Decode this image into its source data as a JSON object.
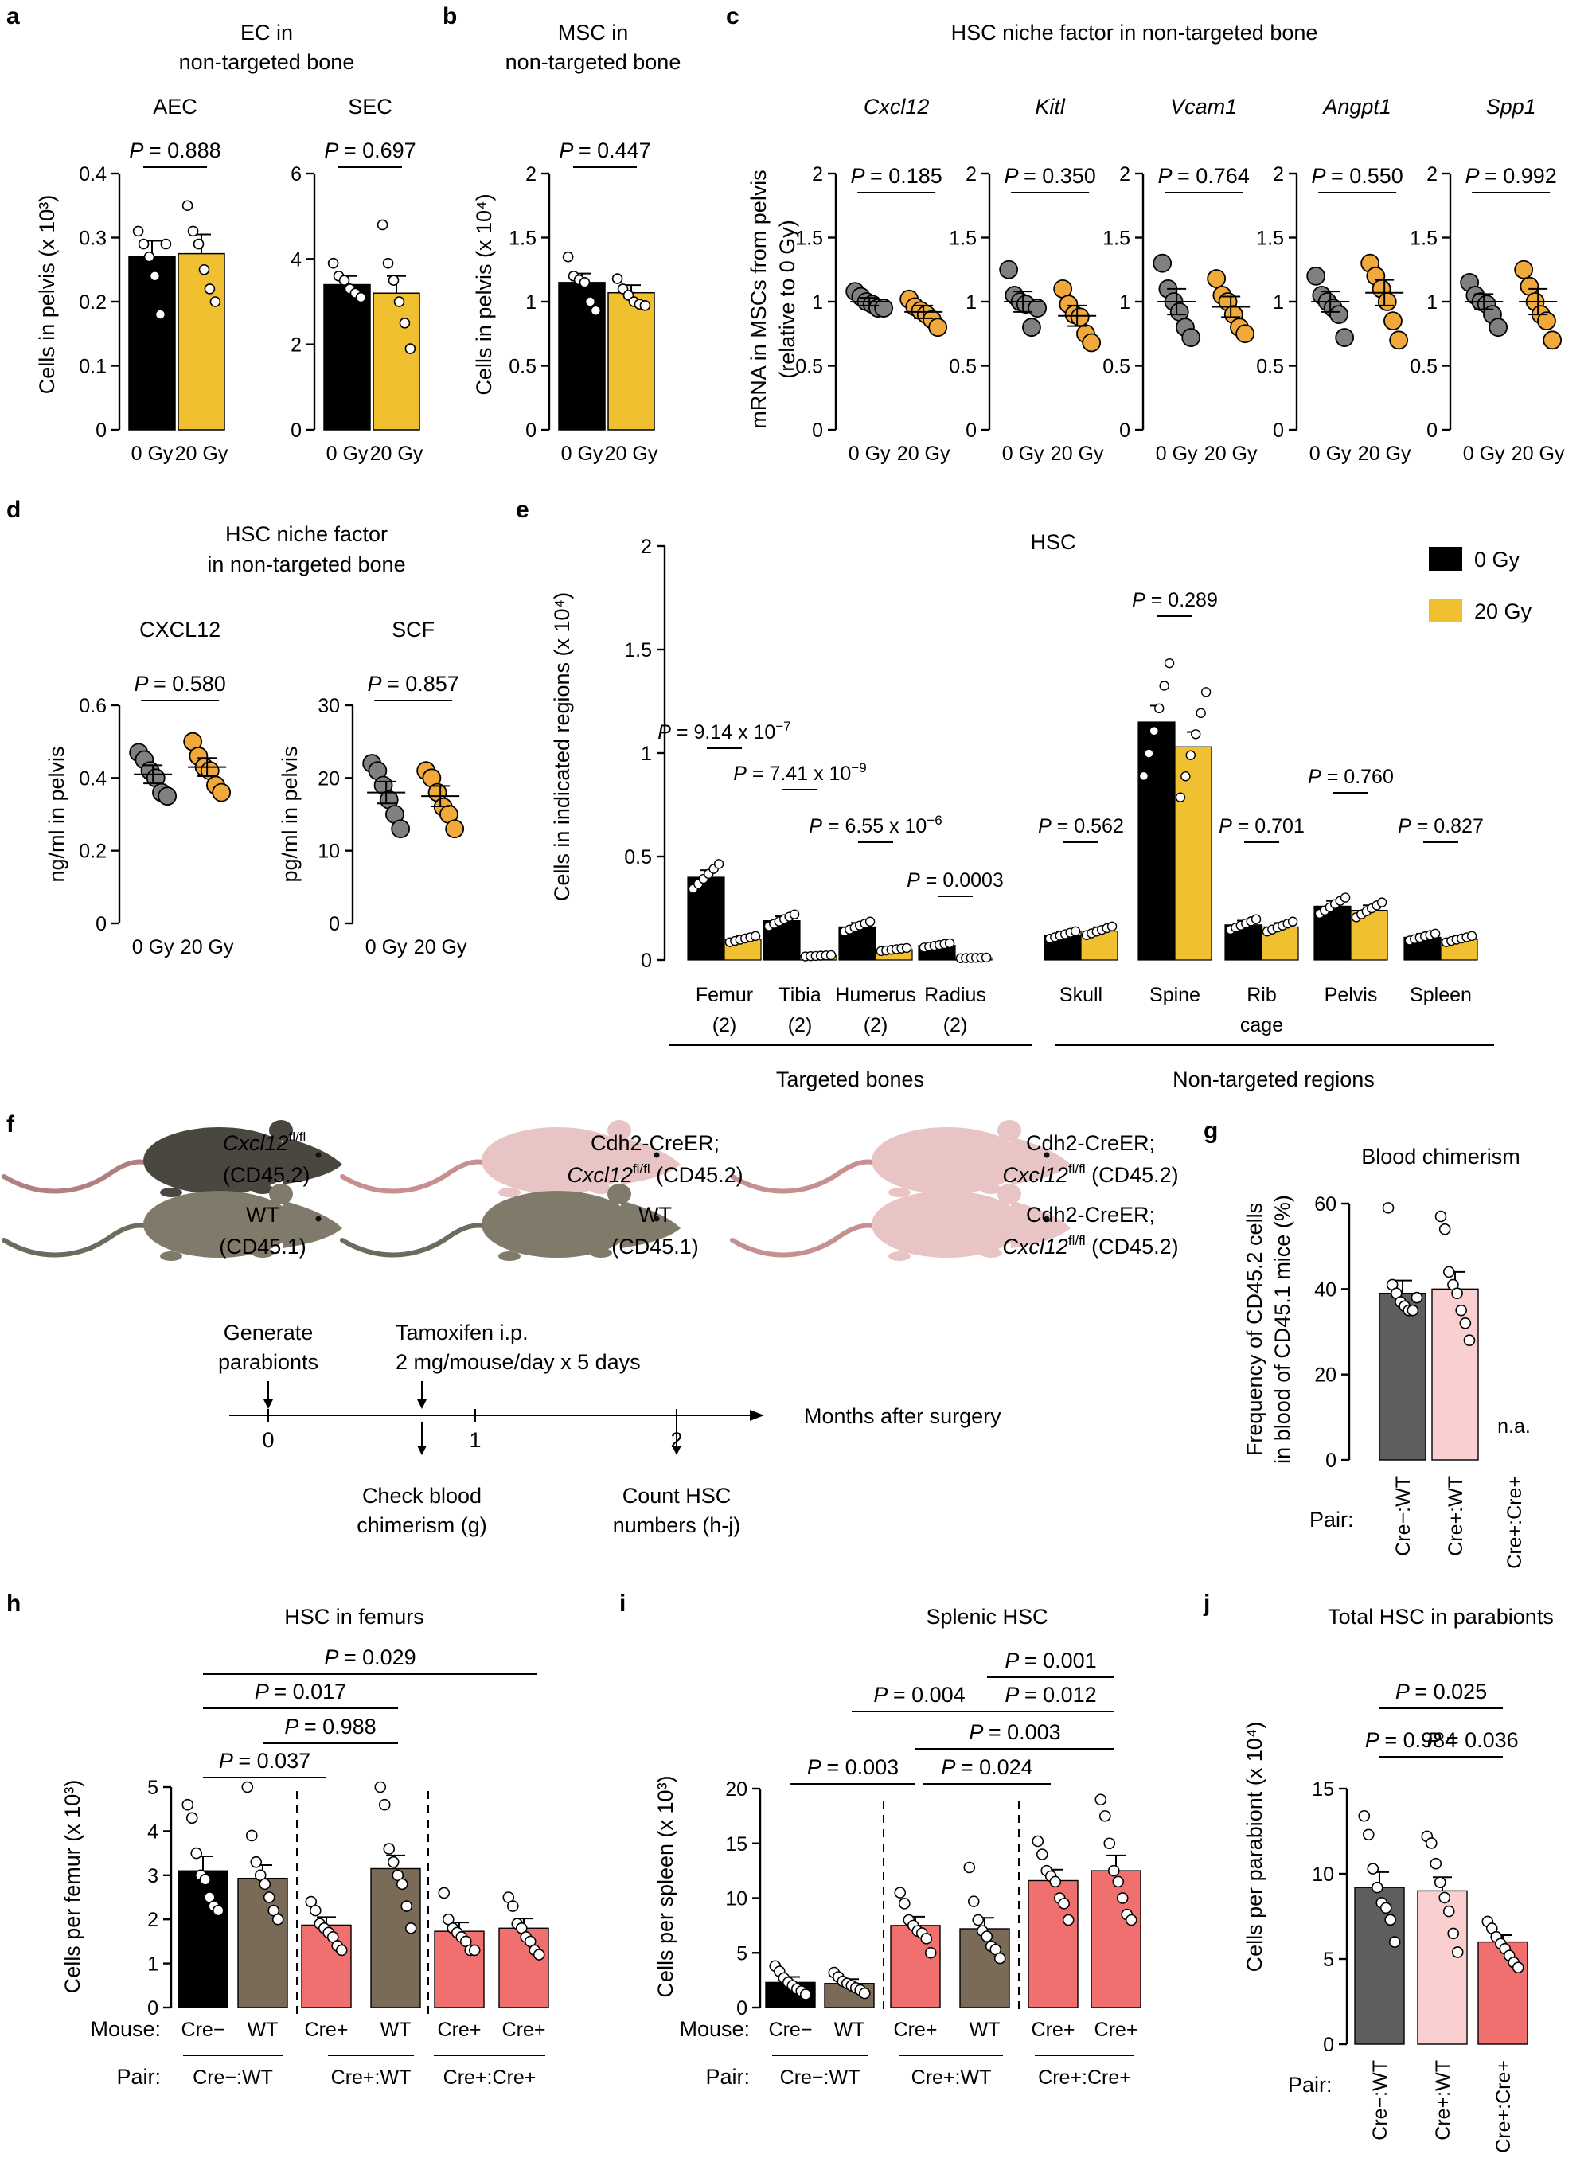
{
  "colors": {
    "ctrl_bar": "#000000",
    "irr_bar": "#f0c030",
    "ctrl_dot": "#808080",
    "irr_dot": "#f2a93b",
    "wt_bar": "#7a6b58",
    "crepos_bar": "#f07070",
    "creneg_bar": "#5e5e5e",
    "creposwt_bar": "#f9cfd0"
  },
  "panel_labels": {
    "a": "a",
    "b": "b",
    "c": "c",
    "d": "d",
    "e": "e",
    "f": "f",
    "g": "g",
    "h": "h",
    "i": "i",
    "j": "j"
  },
  "panel_a": {
    "title_line1": "EC in",
    "title_line2": "non-targeted bone",
    "ylabel": "Cells in pelvis (x 10³)",
    "groups": [
      "0 Gy",
      "20 Gy"
    ],
    "chart_data": [
      {
        "type": "bar",
        "title": "AEC",
        "p": "= 0.888",
        "ylim": [
          0,
          0.4
        ],
        "yticks": [
          "0",
          "0.1",
          "0.2",
          "0.3",
          "0.4"
        ],
        "categories": [
          "0 Gy",
          "20 Gy"
        ],
        "values": [
          0.27,
          0.275
        ],
        "sem": [
          0.025,
          0.03
        ],
        "points": [
          [
            0.31,
            0.29,
            0.27,
            0.24,
            0.18,
            0.29
          ],
          [
            0.35,
            0.31,
            0.29,
            0.25,
            0.22,
            0.2
          ]
        ]
      },
      {
        "type": "bar",
        "title": "SEC",
        "p": "= 0.697",
        "ylim": [
          0,
          6
        ],
        "yticks": [
          "0",
          "2",
          "4",
          "6"
        ],
        "categories": [
          "0 Gy",
          "20 Gy"
        ],
        "values": [
          3.4,
          3.2
        ],
        "sem": [
          0.2,
          0.4
        ],
        "points": [
          [
            3.9,
            3.6,
            3.5,
            3.3,
            3.2,
            3.1
          ],
          [
            4.8,
            3.9,
            3.5,
            3.0,
            2.5,
            1.9
          ]
        ]
      }
    ]
  },
  "panel_b": {
    "title_line1": "MSC in",
    "title_line2": "non-targeted bone",
    "ylabel": "Cells in pelvis (x 10⁴)",
    "chart_data": {
      "type": "bar",
      "p": "= 0.447",
      "ylim": [
        0,
        2
      ],
      "yticks": [
        "0",
        "0.5",
        "1",
        "1.5",
        "2"
      ],
      "categories": [
        "0 Gy",
        "20 Gy"
      ],
      "values": [
        1.15,
        1.07
      ],
      "sem": [
        0.07,
        0.06
      ],
      "points": [
        [
          1.35,
          1.2,
          1.17,
          1.15,
          1.0,
          0.93
        ],
        [
          1.18,
          1.1,
          1.05,
          1.0,
          0.98,
          0.97
        ]
      ]
    }
  },
  "panel_c": {
    "title": "HSC niche factor in non-targeted bone",
    "ylabel_line1": "mRNA in MSCs from pelvis",
    "ylabel_line2": "(relative to 0 Gy)",
    "chart_data": [
      {
        "type": "scatter",
        "gene": "Cxcl12",
        "p": "= 0.185",
        "ylim": [
          0,
          2
        ],
        "yticks": [
          "0",
          "0.5",
          "1",
          "1.5",
          "2"
        ],
        "categories": [
          "0 Gy",
          "20 Gy"
        ],
        "means": [
          1.0,
          0.92
        ],
        "sem": [
          0.03,
          0.05
        ],
        "points": [
          [
            1.08,
            1.04,
            1.0,
            0.98,
            0.95,
            0.95
          ],
          [
            1.02,
            0.96,
            0.93,
            0.9,
            0.86,
            0.8
          ]
        ]
      },
      {
        "type": "scatter",
        "gene": "Kitl",
        "p": "= 0.350",
        "ylim": [
          0,
          2
        ],
        "yticks": [
          "0",
          "0.5",
          "1",
          "1.5",
          "2"
        ],
        "categories": [
          "0 Gy",
          "20 Gy"
        ],
        "means": [
          1.0,
          0.89
        ],
        "sem": [
          0.08,
          0.08
        ],
        "points": [
          [
            1.25,
            1.05,
            1.0,
            0.98,
            0.8,
            0.95
          ],
          [
            1.1,
            0.98,
            0.9,
            0.88,
            0.75,
            0.68
          ]
        ]
      },
      {
        "type": "scatter",
        "gene": "Vcam1",
        "p": "= 0.764",
        "ylim": [
          0,
          2
        ],
        "yticks": [
          "0",
          "0.5",
          "1",
          "1.5",
          "2"
        ],
        "categories": [
          "0 Gy",
          "20 Gy"
        ],
        "means": [
          1.0,
          0.96
        ],
        "sem": [
          0.1,
          0.08
        ],
        "points": [
          [
            1.3,
            1.1,
            1.0,
            0.92,
            0.8,
            0.72
          ],
          [
            1.18,
            1.05,
            1.0,
            0.9,
            0.8,
            0.75
          ]
        ]
      },
      {
        "type": "scatter",
        "gene": "Angpt1",
        "p": "= 0.550",
        "ylim": [
          0,
          2
        ],
        "yticks": [
          "0",
          "0.5",
          "1",
          "1.5",
          "2"
        ],
        "categories": [
          "0 Gy",
          "20 Gy"
        ],
        "means": [
          1.0,
          1.07
        ],
        "sem": [
          0.08,
          0.1
        ],
        "points": [
          [
            1.2,
            1.05,
            1.0,
            0.95,
            0.9,
            0.72
          ],
          [
            1.3,
            1.2,
            1.1,
            1.0,
            0.85,
            0.7
          ]
        ]
      },
      {
        "type": "scatter",
        "gene": "Spp1",
        "p": "= 0.992",
        "ylim": [
          0,
          2
        ],
        "yticks": [
          "0",
          "0.5",
          "1",
          "1.5",
          "2"
        ],
        "categories": [
          "0 Gy",
          "20 Gy"
        ],
        "means": [
          1.0,
          1.0
        ],
        "sem": [
          0.06,
          0.1
        ],
        "points": [
          [
            1.15,
            1.05,
            1.0,
            0.98,
            0.9,
            0.8
          ],
          [
            1.25,
            1.12,
            1.0,
            0.9,
            0.85,
            0.7
          ]
        ]
      }
    ]
  },
  "panel_d": {
    "title_line1": "HSC niche factor",
    "title_line2": "in non-targeted bone",
    "chart_data": [
      {
        "type": "scatter",
        "title": "CXCL12",
        "ylabel": "ng/ml in pelvis",
        "p": "= 0.580",
        "ylim": [
          0,
          0.6
        ],
        "yticks": [
          "0",
          "0.2",
          "0.4",
          "0.6"
        ],
        "categories": [
          "0 Gy",
          "20 Gy"
        ],
        "means": [
          0.41,
          0.43
        ],
        "sem": [
          0.025,
          0.025
        ],
        "points": [
          [
            0.47,
            0.45,
            0.42,
            0.4,
            0.36,
            0.35
          ],
          [
            0.5,
            0.46,
            0.43,
            0.42,
            0.38,
            0.36
          ]
        ]
      },
      {
        "type": "scatter",
        "title": "SCF",
        "ylabel": "pg/ml in pelvis",
        "p": "= 0.857",
        "ylim": [
          0,
          30
        ],
        "yticks": [
          "0",
          "10",
          "20",
          "30"
        ],
        "categories": [
          "0 Gy",
          "20 Gy"
        ],
        "means": [
          18,
          17.5
        ],
        "sem": [
          1.5,
          1.4
        ],
        "points": [
          [
            22,
            21,
            19,
            17,
            15,
            13
          ],
          [
            21,
            20,
            18,
            16,
            15,
            13
          ]
        ]
      }
    ]
  },
  "panel_e": {
    "title": "HSC",
    "ylabel": "Cells in indicated regions (x 10⁴)",
    "legend": [
      "0 Gy",
      "20 Gy"
    ],
    "group_labels": [
      "Targeted bones",
      "Non-targeted regions"
    ],
    "chart_data": {
      "type": "bar",
      "ylim": [
        0,
        2
      ],
      "yticks": [
        "0",
        "0.5",
        "1",
        "1.5",
        "2"
      ],
      "categories": [
        {
          "name": "Femur",
          "sub": "(2)"
        },
        {
          "name": "Tibia",
          "sub": "(2)"
        },
        {
          "name": "Humerus",
          "sub": "(2)"
        },
        {
          "name": "Radius",
          "sub": "(2)"
        },
        {
          "name": "Skull",
          "sub": ""
        },
        {
          "name": "Spine",
          "sub": ""
        },
        {
          "name": "Rib",
          "sub": "cage"
        },
        {
          "name": "Pelvis",
          "sub": ""
        },
        {
          "name": "Spleen",
          "sub": ""
        }
      ],
      "series": [
        {
          "name": "0 Gy",
          "values": [
            0.4,
            0.19,
            0.16,
            0.07,
            0.12,
            1.15,
            0.17,
            0.26,
            0.11
          ]
        },
        {
          "name": "20 Gy",
          "values": [
            0.1,
            0.02,
            0.05,
            0.01,
            0.14,
            1.03,
            0.16,
            0.24,
            0.1
          ]
        }
      ],
      "p_values": [
        {
          "text": "P = 9.14 x 10",
          "sup": "−7"
        },
        {
          "text": "P = 7.41 x 10",
          "sup": "−9"
        },
        {
          "text": "P = 6.55 x 10",
          "sup": "−6"
        },
        {
          "text": "P = 0.0003",
          "sup": ""
        },
        {
          "text": "P = 0.562",
          "sup": ""
        },
        {
          "text": "P = 0.289",
          "sup": ""
        },
        {
          "text": "P = 0.701",
          "sup": ""
        },
        {
          "text": "P = 0.760",
          "sup": ""
        },
        {
          "text": "P = 0.827",
          "sup": ""
        }
      ]
    }
  },
  "panel_f": {
    "pairs": [
      {
        "top_gene": "Cxcl12",
        "top_gene_sup": "fl/fl",
        "top_strain": "(CD45.2)",
        "bottom_line1": "WT",
        "bottom_line2": "(CD45.1)"
      },
      {
        "top_line1": "Cdh2-CreER;",
        "top_gene": "Cxcl12",
        "top_gene_sup": "fl/fl",
        "top_strain": " (CD45.2)",
        "bottom_line1": "WT",
        "bottom_line2": "(CD45.1)"
      },
      {
        "top_line1": "Cdh2-CreER;",
        "top_gene": "Cxcl12",
        "top_gene_sup": "fl/fl",
        "top_strain": " (CD45.2)",
        "bottom_line1": "Cdh2-CreER;",
        "bottom_gene": "Cxcl12",
        "bottom_gene_sup": "fl/fl",
        "bottom_strain": " (CD45.2)"
      }
    ],
    "timeline": {
      "axis_label": "Months after surgery",
      "ticks": [
        "0",
        "1",
        "2"
      ],
      "event1_line1": "Generate",
      "event1_line2": "parabionts",
      "event2_line1": "Tamoxifen i.p.",
      "event2_line2": "2 mg/mouse/day x 5 days",
      "event3_line1": "Check blood",
      "event3_line2": "chimerism (g)",
      "event4_line1": "Count HSC",
      "event4_line2": "numbers (h-j)"
    }
  },
  "panel_g": {
    "title": "Blood chimerism",
    "ylabel_line1": "Frequency of CD45.2 cells",
    "ylabel_line2": "in blood of CD45.1 mice (%)",
    "pair_label": "Pair:",
    "na_label": "n.a.",
    "chart_data": {
      "type": "bar",
      "ylim": [
        0,
        60
      ],
      "yticks": [
        "0",
        "20",
        "40",
        "60"
      ],
      "categories": [
        "Cre−:WT",
        "Cre+:WT",
        "Cre+:Cre+"
      ],
      "values": [
        39,
        40,
        null
      ],
      "sem": [
        3,
        4,
        null
      ],
      "points": [
        [
          59,
          41,
          39,
          37,
          36,
          35,
          35,
          38
        ],
        [
          57,
          54,
          44,
          41,
          39,
          35,
          32,
          28
        ]
      ]
    }
  },
  "panel_h": {
    "title": "HSC in femurs",
    "ylabel": "Cells per femur (x 10³)",
    "mouse_label": "Mouse:",
    "pair_label": "Pair:",
    "pairs": [
      "Cre−:WT",
      "Cre+:WT",
      "Cre+:Cre+"
    ],
    "p_values": [
      "= 0.029",
      "= 0.017",
      "= 0.988",
      "= 0.037"
    ],
    "chart_data": {
      "type": "bar",
      "ylim": [
        0,
        5
      ],
      "yticks": [
        "0",
        "1",
        "2",
        "3",
        "4",
        "5"
      ],
      "categories": [
        "Cre−",
        "WT",
        "Cre+",
        "WT",
        "Cre+",
        "Cre+"
      ],
      "values": [
        3.1,
        2.93,
        1.87,
        3.15,
        1.73,
        1.8
      ],
      "sem": [
        0.33,
        0.3,
        0.18,
        0.3,
        0.2,
        0.22
      ],
      "points": [
        [
          4.6,
          4.3,
          3.5,
          3.0,
          2.9,
          2.5,
          2.3,
          2.2
        ],
        [
          5.0,
          3.9,
          3.3,
          3.0,
          2.8,
          2.5,
          2.2,
          2.0
        ],
        [
          2.4,
          2.2,
          1.9,
          1.8,
          1.7,
          1.6,
          1.4,
          1.3
        ],
        [
          5.0,
          4.6,
          3.6,
          3.3,
          3.0,
          2.8,
          2.3,
          1.8
        ],
        [
          2.6,
          2.0,
          1.8,
          1.7,
          1.6,
          1.5,
          1.3,
          1.3
        ],
        [
          2.5,
          2.3,
          1.9,
          1.8,
          1.6,
          1.5,
          1.3,
          1.2
        ]
      ]
    }
  },
  "panel_i": {
    "title": "Splenic HSC",
    "ylabel": "Cells per spleen (x 10³)",
    "mouse_label": "Mouse:",
    "pair_label": "Pair:",
    "pairs": [
      "Cre−:WT",
      "Cre+:WT",
      "Cre+:Cre+"
    ],
    "p_values": [
      "= 0.001",
      "= 0.004",
      "= 0.012",
      "= 0.003",
      "= 0.003",
      "= 0.024"
    ],
    "chart_data": {
      "type": "bar",
      "ylim": [
        0,
        20
      ],
      "yticks": [
        "0",
        "5",
        "10",
        "15",
        "20"
      ],
      "categories": [
        "Cre−",
        "WT",
        "Cre+",
        "WT",
        "Cre+",
        "Cre+"
      ],
      "values": [
        2.3,
        2.2,
        7.5,
        7.2,
        11.6,
        12.5
      ],
      "sem": [
        0.5,
        0.4,
        0.8,
        1.0,
        1.0,
        1.4
      ],
      "points": [
        [
          3.8,
          3.3,
          2.7,
          2.3,
          2.0,
          1.7,
          1.5,
          1.2
        ],
        [
          3.2,
          2.8,
          2.4,
          2.2,
          2.0,
          1.8,
          1.6,
          1.3
        ],
        [
          10.5,
          9.5,
          8.0,
          7.5,
          7.0,
          6.8,
          6.3,
          5.0
        ],
        [
          12.8,
          9.7,
          8.0,
          7.0,
          6.5,
          5.6,
          5.3,
          4.5
        ],
        [
          15.2,
          14.0,
          12.5,
          12.0,
          11.5,
          10.0,
          9.5,
          8.0
        ],
        [
          19.0,
          17.5,
          15.0,
          12.5,
          11.5,
          10.0,
          8.5,
          8.0
        ]
      ]
    }
  },
  "panel_j": {
    "title": "Total HSC in parabionts",
    "ylabel": "Cells per parabiont (x 10⁴)",
    "pair_label": "Pair:",
    "p_values": [
      "= 0.025",
      "= 0.984",
      "= 0.036"
    ],
    "chart_data": {
      "type": "bar",
      "ylim": [
        0,
        15
      ],
      "yticks": [
        "0",
        "5",
        "10",
        "15"
      ],
      "categories": [
        "Cre−:WT",
        "Cre+:WT",
        "Cre+:Cre+"
      ],
      "values": [
        9.2,
        9.0,
        6.0
      ],
      "sem": [
        0.9,
        0.8,
        0.4
      ],
      "points": [
        [
          13.4,
          12.3,
          10.3,
          9.2,
          8.3,
          8.0,
          7.3,
          6.0
        ],
        [
          12.2,
          11.8,
          10.6,
          9.5,
          8.6,
          7.8,
          6.5,
          5.4
        ],
        [
          7.2,
          6.8,
          6.3,
          5.9,
          5.6,
          5.2,
          4.8,
          4.5
        ]
      ]
    }
  }
}
